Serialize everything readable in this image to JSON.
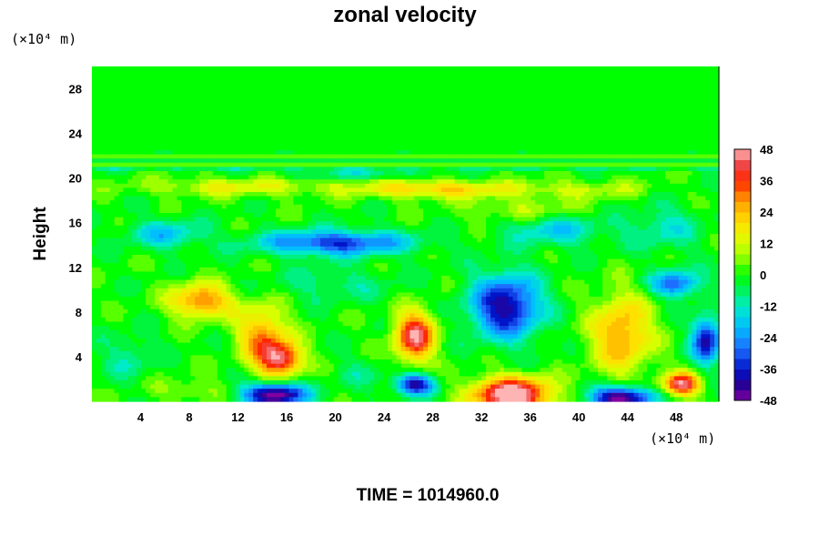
{
  "chart_data": {
    "type": "heatmap",
    "title": "zonal velocity",
    "ylabel": "Height",
    "xlabel": "",
    "x_unit_label": "(×10⁴ m)",
    "y_unit_label": "(×10⁴ m)",
    "xlim": [
      0,
      51.5
    ],
    "ylim": [
      0,
      30
    ],
    "x_ticks": [
      "4",
      "8",
      "12",
      "16",
      "20",
      "24",
      "28",
      "32",
      "36",
      "40",
      "44",
      "48"
    ],
    "x_tick_values": [
      4,
      8,
      12,
      16,
      20,
      24,
      28,
      32,
      36,
      40,
      44,
      48
    ],
    "y_ticks": [
      "4",
      "8",
      "12",
      "16",
      "20",
      "24",
      "28"
    ],
    "y_tick_values": [
      4,
      8,
      12,
      16,
      20,
      24,
      28
    ],
    "colorbar": {
      "range": [
        -48,
        48
      ],
      "ticks": [
        "48",
        "36",
        "24",
        "12",
        "0",
        "-12",
        "-24",
        "-36",
        "-48"
      ],
      "tick_values": [
        48,
        36,
        24,
        12,
        0,
        -12,
        -24,
        -36,
        -48
      ],
      "step": 4
    },
    "footer": "TIME = 1014960.0",
    "background_value": 0,
    "features": [
      {
        "x": 9,
        "y": 9,
        "amp": 32,
        "sx": 2.5,
        "sy": 1.5
      },
      {
        "x": 14,
        "y": 6,
        "amp": 28,
        "sx": 2.0,
        "sy": 2.5
      },
      {
        "x": 15.5,
        "y": 3.8,
        "amp": 42,
        "sx": 1.8,
        "sy": 1.5
      },
      {
        "x": 15,
        "y": 0.6,
        "amp": -52,
        "sx": 2.5,
        "sy": 1.0
      },
      {
        "x": 20,
        "y": 14.2,
        "amp": -34,
        "sx": 6.0,
        "sy": 1.1
      },
      {
        "x": 6,
        "y": 15,
        "amp": -18,
        "sx": 3.0,
        "sy": 1.2
      },
      {
        "x": 26.5,
        "y": 5.8,
        "amp": 45,
        "sx": 1.6,
        "sy": 2.2
      },
      {
        "x": 26.5,
        "y": 1.5,
        "amp": -42,
        "sx": 1.6,
        "sy": 0.9
      },
      {
        "x": 34,
        "y": 8.5,
        "amp": -42,
        "sx": 2.8,
        "sy": 2.8
      },
      {
        "x": 34.5,
        "y": 0.6,
        "amp": 55,
        "sx": 3.2,
        "sy": 1.5
      },
      {
        "x": 43.5,
        "y": 6.0,
        "amp": 28,
        "sx": 2.5,
        "sy": 3.5
      },
      {
        "x": 43.5,
        "y": 0.3,
        "amp": -52,
        "sx": 2.5,
        "sy": 1.0
      },
      {
        "x": 48.5,
        "y": 1.5,
        "amp": 45,
        "sx": 1.5,
        "sy": 1.0
      },
      {
        "x": 50.5,
        "y": 5.5,
        "amp": -40,
        "sx": 1.2,
        "sy": 2.0
      },
      {
        "x": 48,
        "y": 10.5,
        "amp": -30,
        "sx": 2.0,
        "sy": 1.2
      },
      {
        "x": 38,
        "y": 15.5,
        "amp": -18,
        "sx": 4.0,
        "sy": 1.5
      },
      {
        "x": 47,
        "y": 15.5,
        "amp": -12,
        "sx": 3.0,
        "sy": 2.0
      },
      {
        "x": 28,
        "y": 19,
        "amp": 22,
        "sx": 6.0,
        "sy": 0.8
      },
      {
        "x": 12,
        "y": 19.2,
        "amp": 14,
        "sx": 8.0,
        "sy": 0.8
      },
      {
        "x": 40,
        "y": 19.0,
        "amp": 10,
        "sx": 6.0,
        "sy": 0.8
      },
      {
        "x": 22,
        "y": 20.3,
        "amp": -12,
        "sx": 6.0,
        "sy": 0.35
      },
      {
        "x": 36,
        "y": 17.0,
        "amp": 12,
        "sx": 5.0,
        "sy": 1.2
      },
      {
        "x": 20,
        "y": 10.5,
        "amp": -8,
        "sx": 5.0,
        "sy": 1.5
      },
      {
        "x": 3,
        "y": 4,
        "amp": -10,
        "sx": 2.0,
        "sy": 2.0
      },
      {
        "x": 22,
        "y": 2.5,
        "amp": -6,
        "sx": 2.0,
        "sy": 1.5
      },
      {
        "x": 8,
        "y": 1,
        "amp": 8,
        "sx": 3.0,
        "sy": 1.0
      }
    ]
  }
}
